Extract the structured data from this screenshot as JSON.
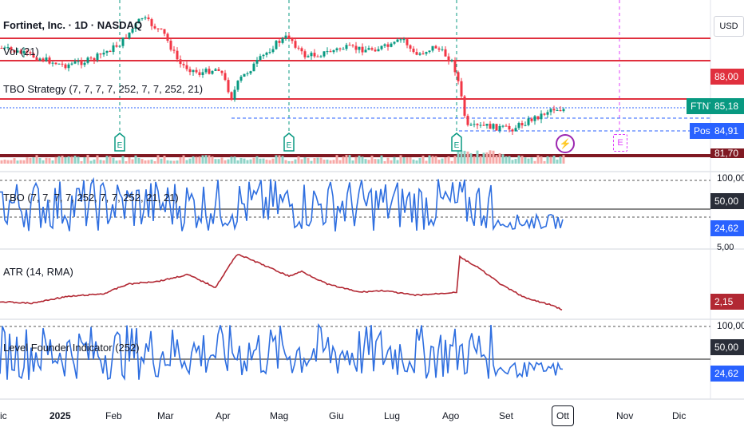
{
  "symbol": {
    "title": "Fortinet, Inc. · 1D · NASDAQ",
    "currency": "USD"
  },
  "price_pane": {
    "indicator_labels": [
      "Vol (21)",
      "TBO Strategy (7, 7, 7, 7, 252, 7, 7, 252, 21)"
    ],
    "price_tags": {
      "red_top": "88,00",
      "ticker": "FTNT",
      "last": "85,18",
      "post_label": "Post",
      "post": "84,91",
      "dark_red": "81,70"
    }
  },
  "panes": [
    {
      "label": "TBO (7, 7, 7, 7, 252, 7, 7, 252, 21, 21)",
      "tags": [
        "100,00",
        "50,00",
        "24,62"
      ],
      "scale_bottom": "5,00"
    },
    {
      "label": "ATR (14, RMA)",
      "tags": [
        "2,15"
      ]
    },
    {
      "label": "Level Founder Indicator (252)",
      "tags": [
        "100,00",
        "50,00",
        "24,62"
      ]
    }
  ],
  "x_axis": {
    "ticks": [
      "ic",
      "2025",
      "Feb",
      "Mar",
      "Apr",
      "Mag",
      "Giu",
      "Lug",
      "Ago",
      "Set",
      "Ott",
      "Nov",
      "Dic"
    ]
  },
  "earnings_markers": [
    "E",
    "E",
    "E",
    "⚡",
    "E"
  ],
  "colors": {
    "up": "#089981",
    "down": "#f23645",
    "level_red": "#e0303e",
    "dark_red": "#801922",
    "blue": "#2962ff",
    "osc": "#2f6fe0",
    "atr": "#b22833",
    "grey": "#888888",
    "purple": "#9c27b0",
    "magenta": "#e040fb"
  }
}
